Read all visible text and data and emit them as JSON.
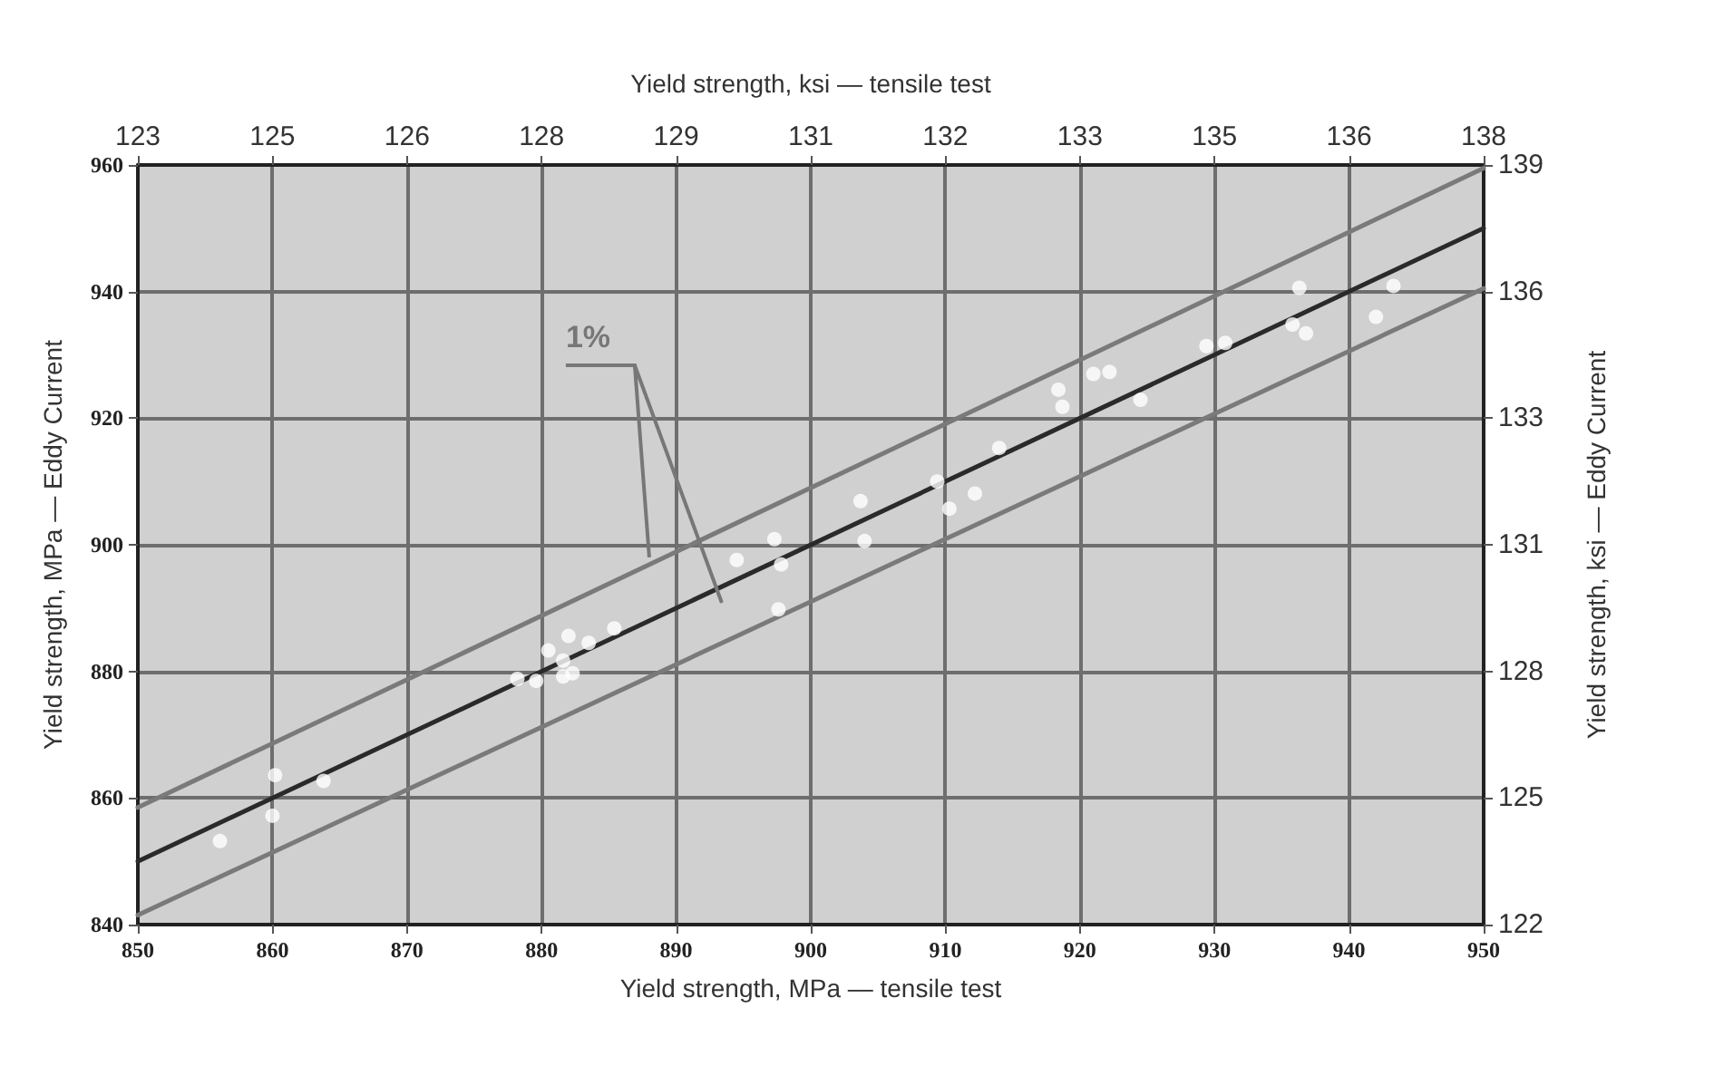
{
  "chart_data": {
    "type": "scatter",
    "xlabel": "Yield strength, MPa — tensile test",
    "x2label": "Yield strength, ksi — tensile test",
    "ylabel": "Yield strength, MPa — Eddy Current",
    "y2label": "Yield strength, ksi — Eddy Current",
    "annotations": [
      {
        "text": "1%",
        "x": 888,
        "y": 898
      }
    ],
    "series": [
      {
        "color": "#ffffff",
        "marker": "circle",
        "x": [
          856.1,
          860.2,
          860.0,
          863.8,
          878.2,
          879.6,
          880.5,
          882.0,
          881.6,
          882.3,
          881.6,
          883.5,
          885.4,
          894.5,
          897.3,
          897.8,
          897.6,
          903.7,
          904.0,
          909.4,
          910.3,
          912.2,
          914.0,
          918.4,
          918.7,
          921.0,
          922.2,
          924.5,
          929.4,
          930.8,
          936.3,
          935.8,
          936.8,
          942.0,
          943.3
        ],
        "values": [
          853.2,
          863.6,
          857.2,
          862.7,
          878.8,
          878.5,
          883.3,
          885.6,
          881.7,
          879.7,
          879.2,
          884.5,
          886.8,
          897.6,
          900.9,
          896.9,
          889.8,
          906.9,
          900.6,
          910.0,
          905.7,
          908.1,
          915.3,
          924.5,
          921.8,
          927.0,
          927.3,
          922.9,
          931.4,
          931.9,
          940.6,
          934.8,
          933.4,
          936.0,
          940.9
        ]
      },
      {
        "type": "line",
        "marker": "none",
        "color": "#7a7a7a",
        "x": [
          850,
          950
        ],
        "values": [
          858.5,
          959.5
        ]
      },
      {
        "type": "line",
        "marker": "none",
        "color": "#2a2a2a",
        "x": [
          850,
          950
        ],
        "values": [
          850,
          950
        ]
      },
      {
        "type": "line",
        "marker": "none",
        "color": "#7a7a7a",
        "x": [
          850,
          950
        ],
        "values": [
          841.5,
          940.5
        ]
      }
    ],
    "xlim": [
      850,
      950
    ],
    "xticks": [
      850,
      860,
      870,
      880,
      890,
      900,
      910,
      920,
      930,
      940,
      950
    ],
    "ylim": [
      840,
      960
    ],
    "yticks": [
      840,
      860,
      880,
      900,
      920,
      940,
      960
    ],
    "x2lim": [
      123.28,
      137.78
    ],
    "x2ticks": [
      {
        "value": 123.28,
        "label": "123"
      },
      {
        "value": 124.73,
        "label": "125"
      },
      {
        "value": 126.18,
        "label": "126"
      },
      {
        "value": 127.63,
        "label": "128"
      },
      {
        "value": 129.08,
        "label": "129"
      },
      {
        "value": 130.53,
        "label": "131"
      },
      {
        "value": 131.98,
        "label": "132"
      },
      {
        "value": 133.43,
        "label": "133"
      },
      {
        "value": 134.88,
        "label": "135"
      },
      {
        "value": 136.33,
        "label": "136"
      },
      {
        "value": 137.78,
        "label": "138"
      }
    ],
    "y2lim": [
      121.83,
      139.23
    ],
    "y2ticks": [
      {
        "value": 121.83,
        "label": "122"
      },
      {
        "value": 124.73,
        "label": "125"
      },
      {
        "value": 127.63,
        "label": "128"
      },
      {
        "value": 130.53,
        "label": "131"
      },
      {
        "value": 133.43,
        "label": "133"
      },
      {
        "value": 136.33,
        "label": "136"
      },
      {
        "value": 139.23,
        "label": "139"
      }
    ],
    "grid": true,
    "line_style": "solid"
  }
}
